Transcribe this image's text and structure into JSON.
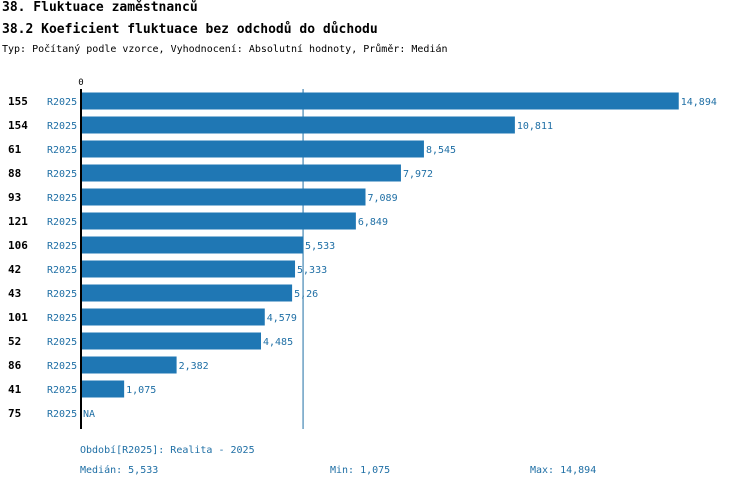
{
  "header": {
    "title": "38. Fluktuace zaměstnanců",
    "subtitle": "38.2 Koeficient fluktuace bez odchodů do důchodu",
    "info": "Typ: Počítaný podle vzorce, Vyhodnocení: Absolutní hodnoty, Průměr: Medián"
  },
  "colors": {
    "bar": "#1f77b4",
    "label": "#1f6fa5",
    "axis": "#000000"
  },
  "chart_data": {
    "type": "bar",
    "orientation": "horizontal",
    "axis_zero_label": "0",
    "xlim": [
      0,
      15000
    ],
    "median": 5533,
    "rows": [
      {
        "id": "155",
        "period": "R2025",
        "value": 14894,
        "label": "14,894"
      },
      {
        "id": "154",
        "period": "R2025",
        "value": 10811,
        "label": "10,811"
      },
      {
        "id": "61",
        "period": "R2025",
        "value": 8545,
        "label": "8,545"
      },
      {
        "id": "88",
        "period": "R2025",
        "value": 7972,
        "label": "7,972"
      },
      {
        "id": "93",
        "period": "R2025",
        "value": 7089,
        "label": "7,089"
      },
      {
        "id": "121",
        "period": "R2025",
        "value": 6849,
        "label": "6,849"
      },
      {
        "id": "106",
        "period": "R2025",
        "value": 5533,
        "label": "5,533"
      },
      {
        "id": "42",
        "period": "R2025",
        "value": 5333,
        "label": "5,333"
      },
      {
        "id": "43",
        "period": "R2025",
        "value": 5260,
        "label": "5,26"
      },
      {
        "id": "101",
        "period": "R2025",
        "value": 4579,
        "label": "4,579"
      },
      {
        "id": "52",
        "period": "R2025",
        "value": 4485,
        "label": "4,485"
      },
      {
        "id": "86",
        "period": "R2025",
        "value": 2382,
        "label": "2,382"
      },
      {
        "id": "41",
        "period": "R2025",
        "value": 1075,
        "label": "1,075"
      },
      {
        "id": "75",
        "period": "R2025",
        "value": null,
        "label": "NA"
      }
    ]
  },
  "footer": {
    "period": "Období[R2025]: Realita - 2025",
    "median": "Medián: 5,533",
    "min": "Min: 1,075",
    "max": "Max: 14,894"
  }
}
